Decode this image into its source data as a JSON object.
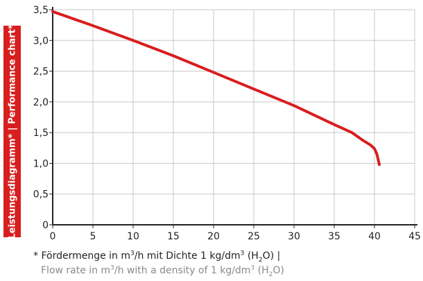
{
  "side_title": "Leistungsdiagramm* | Performance chart*",
  "caption": {
    "line1": {
      "prefix": "* Fördermenge in m",
      "exp1": "3",
      "mid": "/h mit Dichte 1 kg/dm",
      "exp2": "3",
      "open": " (H",
      "sub": "2",
      "close": "O) |"
    },
    "line2": {
      "prefix": "Flow rate in m",
      "exp1": "3",
      "mid": "/h with a density of 1 kg/dm",
      "exp2": "3",
      "open": " (H",
      "sub": "2",
      "close": "O)"
    }
  },
  "colors": {
    "line": "#d81e1e",
    "banner": "#d81e1e",
    "grid": "#c8c8c8",
    "axis": "#222222"
  },
  "chart_data": {
    "type": "line",
    "xlim": [
      0,
      45
    ],
    "ylim": [
      0,
      3.5
    ],
    "x_ticks": [
      "0",
      "5",
      "10",
      "15",
      "20",
      "25",
      "30",
      "35",
      "40",
      "45"
    ],
    "y_ticks": [
      "0",
      "0,5",
      "1,0",
      "1,5",
      "2,0",
      "2,5",
      "3,0",
      "3,5"
    ],
    "grid": true,
    "series": [
      {
        "x": [
          0,
          5,
          10,
          15,
          20,
          25,
          30,
          35,
          37.2,
          38.5,
          39.5,
          40.0,
          40.3,
          40.6
        ],
        "y": [
          3.47,
          3.24,
          3.0,
          2.75,
          2.48,
          2.21,
          1.94,
          1.63,
          1.5,
          1.38,
          1.3,
          1.24,
          1.15,
          0.98
        ]
      }
    ]
  }
}
